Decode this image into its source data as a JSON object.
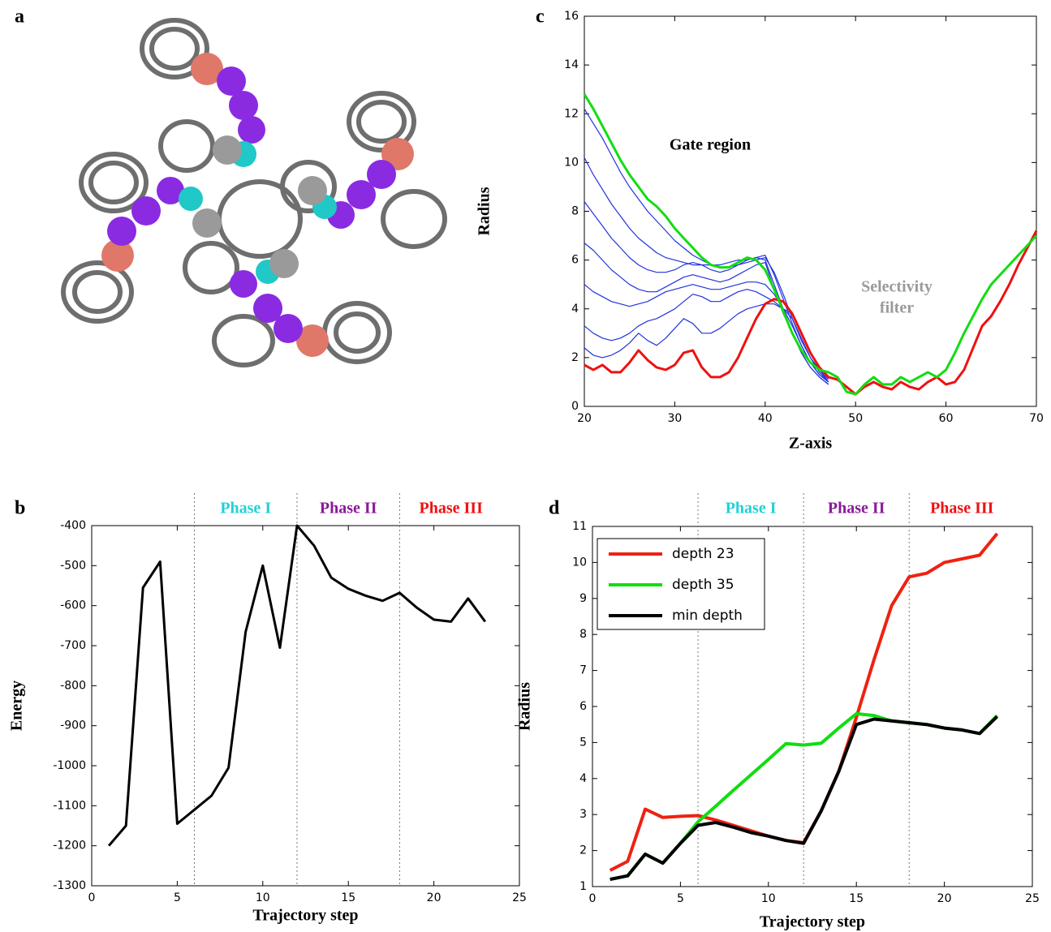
{
  "image_panel": {
    "panel": "a"
  },
  "chart_data": [
    {
      "type": "line",
      "panel": "c",
      "x_label": "Z-axis",
      "y_label": "Radius",
      "xlim": [
        20,
        70
      ],
      "xticks": [
        20,
        30,
        40,
        50,
        60,
        70
      ],
      "ylim": [
        0,
        16
      ],
      "yticks": [
        0,
        2,
        4,
        6,
        8,
        10,
        12,
        14,
        16
      ],
      "annotations": [
        {
          "lines": [
            "Gate region"
          ],
          "color": "#000000"
        },
        {
          "lines": [
            "Selectivity",
            "filter"
          ],
          "color": "#9a9a9a"
        }
      ],
      "x": [
        20,
        21,
        22,
        23,
        24,
        25,
        26,
        27,
        28,
        29,
        30,
        31,
        32,
        33,
        34,
        35,
        36,
        37,
        38,
        39,
        40,
        41,
        42,
        43,
        44,
        45,
        46,
        47,
        48,
        49,
        50,
        51,
        52,
        53,
        54,
        55,
        56,
        57,
        58,
        59,
        60,
        61,
        62,
        63,
        64,
        65,
        66,
        67,
        68,
        69,
        70
      ],
      "series": [
        {
          "color": "#2233dd",
          "values": [
            12.2,
            11.6,
            11.0,
            10.3,
            9.6,
            9.0,
            8.5,
            8.0,
            7.6,
            7.2,
            6.8,
            6.5,
            6.2,
            6.0,
            5.8,
            5.7,
            5.7,
            5.8,
            5.9,
            6.0,
            6.1,
            5.5,
            4.6,
            3.6,
            2.7,
            2.0,
            1.5,
            1.1,
            null,
            null,
            null,
            null,
            null,
            null,
            null,
            null,
            null,
            null,
            null,
            null,
            null,
            null,
            null,
            null,
            null,
            null,
            null,
            null,
            null,
            null,
            null
          ]
        },
        {
          "color": "#2233dd",
          "values": [
            10.2,
            9.5,
            8.9,
            8.3,
            7.8,
            7.3,
            6.9,
            6.6,
            6.3,
            6.1,
            6.0,
            5.9,
            5.8,
            5.8,
            5.8,
            5.8,
            5.9,
            6.0,
            6.0,
            6.1,
            6.2,
            5.4,
            4.4,
            3.4,
            2.5,
            1.8,
            1.3,
            1.0,
            null,
            null,
            null,
            null,
            null,
            null,
            null,
            null,
            null,
            null,
            null,
            null,
            null,
            null,
            null,
            null,
            null,
            null,
            null,
            null,
            null,
            null,
            null
          ]
        },
        {
          "color": "#2233dd",
          "values": [
            8.4,
            7.9,
            7.4,
            6.9,
            6.5,
            6.1,
            5.8,
            5.6,
            5.5,
            5.5,
            5.6,
            5.8,
            5.9,
            5.8,
            5.6,
            5.5,
            5.6,
            5.8,
            6.0,
            6.1,
            6.0,
            5.0,
            4.0,
            3.0,
            2.2,
            1.6,
            1.2,
            0.9,
            null,
            null,
            null,
            null,
            null,
            null,
            null,
            null,
            null,
            null,
            null,
            null,
            null,
            null,
            null,
            null,
            null,
            null,
            null,
            null,
            null,
            null,
            null
          ]
        },
        {
          "color": "#2233dd",
          "values": [
            6.7,
            6.4,
            6.0,
            5.6,
            5.3,
            5.0,
            4.8,
            4.7,
            4.7,
            4.9,
            5.1,
            5.3,
            5.4,
            5.3,
            5.2,
            5.1,
            5.2,
            5.4,
            5.6,
            5.8,
            5.9,
            4.8,
            3.8,
            3.0,
            2.2,
            1.6,
            1.2,
            0.9,
            null,
            null,
            null,
            null,
            null,
            null,
            null,
            null,
            null,
            null,
            null,
            null,
            null,
            null,
            null,
            null,
            null,
            null,
            null,
            null,
            null,
            null,
            null
          ]
        },
        {
          "color": "#2233dd",
          "values": [
            5.0,
            4.7,
            4.5,
            4.3,
            4.2,
            4.1,
            4.2,
            4.3,
            4.5,
            4.7,
            4.8,
            4.9,
            5.0,
            4.9,
            4.8,
            4.8,
            4.9,
            5.0,
            5.1,
            5.1,
            5.0,
            4.6,
            4.0,
            3.3,
            2.5,
            1.8,
            1.3,
            1.0,
            null,
            null,
            null,
            null,
            null,
            null,
            null,
            null,
            null,
            null,
            null,
            null,
            null,
            null,
            null,
            null,
            null,
            null,
            null,
            null,
            null,
            null,
            null
          ]
        },
        {
          "color": "#2233dd",
          "values": [
            3.3,
            3.0,
            2.8,
            2.7,
            2.8,
            3.0,
            3.3,
            3.5,
            3.6,
            3.8,
            4.0,
            4.3,
            4.6,
            4.5,
            4.3,
            4.3,
            4.5,
            4.7,
            4.8,
            4.7,
            4.5,
            4.3,
            4.0,
            3.6,
            2.8,
            2.0,
            1.4,
            1.0,
            null,
            null,
            null,
            null,
            null,
            null,
            null,
            null,
            null,
            null,
            null,
            null,
            null,
            null,
            null,
            null,
            null,
            null,
            null,
            null,
            null,
            null,
            null
          ]
        },
        {
          "color": "#2233dd",
          "values": [
            2.4,
            2.1,
            2.0,
            2.1,
            2.3,
            2.6,
            3.0,
            2.7,
            2.5,
            2.8,
            3.2,
            3.6,
            3.4,
            3.0,
            3.0,
            3.2,
            3.5,
            3.8,
            4.0,
            4.1,
            4.2,
            4.2,
            4.0,
            3.8,
            3.0,
            2.2,
            1.5,
            1.0,
            null,
            null,
            null,
            null,
            null,
            null,
            null,
            null,
            null,
            null,
            null,
            null,
            null,
            null,
            null,
            null,
            null,
            null,
            null,
            null,
            null,
            null,
            null
          ]
        },
        {
          "color": "#ee1111",
          "values": [
            1.7,
            1.5,
            1.7,
            1.4,
            1.4,
            1.8,
            2.3,
            1.9,
            1.6,
            1.5,
            1.7,
            2.2,
            2.3,
            1.6,
            1.2,
            1.2,
            1.4,
            2.0,
            2.8,
            3.6,
            4.2,
            4.4,
            4.3,
            3.8,
            3.0,
            2.2,
            1.6,
            1.2,
            1.1,
            0.8,
            0.5,
            0.8,
            1.0,
            0.8,
            0.7,
            1.0,
            0.8,
            0.7,
            1.0,
            1.2,
            0.9,
            1.0,
            1.5,
            2.4,
            3.3,
            3.7,
            4.3,
            5.0,
            5.8,
            6.5,
            7.2
          ]
        },
        {
          "color": "#11dd11",
          "values": [
            12.8,
            12.2,
            11.5,
            10.8,
            10.1,
            9.5,
            9.0,
            8.5,
            8.2,
            7.8,
            7.3,
            6.9,
            6.5,
            6.1,
            5.8,
            5.7,
            5.7,
            5.9,
            6.1,
            6.0,
            5.6,
            4.8,
            3.9,
            3.0,
            2.3,
            1.8,
            1.5,
            1.4,
            1.2,
            0.6,
            0.5,
            0.9,
            1.2,
            0.9,
            0.9,
            1.2,
            1.0,
            1.2,
            1.4,
            1.2,
            1.5,
            2.2,
            3.0,
            3.7,
            4.4,
            5.0,
            5.4,
            5.8,
            6.2,
            6.6,
            7.0
          ]
        }
      ]
    },
    {
      "type": "line",
      "panel": "b",
      "x_label": "Trajectory step",
      "y_label": "Energy",
      "xlim": [
        0,
        25
      ],
      "xticks": [
        0,
        5,
        10,
        15,
        20,
        25
      ],
      "ylim": [
        -1300,
        -400
      ],
      "yticks": [
        -1300,
        -1200,
        -1100,
        -1000,
        -900,
        -800,
        -700,
        -600,
        -500,
        -400
      ],
      "phases": [
        {
          "label": "Phase I",
          "start": 6,
          "color": "#22d0d8"
        },
        {
          "label": "Phase II",
          "start": 12,
          "color": "#8a1a9a"
        },
        {
          "label": "Phase III",
          "start": 18,
          "color": "#ee1111"
        }
      ],
      "x": [
        1,
        2,
        3,
        4,
        5,
        6,
        7,
        8,
        9,
        10,
        11,
        12,
        13,
        14,
        15,
        16,
        17,
        18,
        19,
        20,
        21,
        22,
        23
      ],
      "series": [
        {
          "color": "#000000",
          "values": [
            -1200,
            -1150,
            -555,
            -490,
            -1145,
            -1110,
            -1075,
            -1005,
            -665,
            -500,
            -705,
            -400,
            -450,
            -530,
            -558,
            -575,
            -588,
            -568,
            -605,
            -635,
            -640,
            -582,
            -640
          ]
        }
      ]
    },
    {
      "type": "line",
      "panel": "d",
      "x_label": "Trajectory step",
      "y_label": "Radius",
      "xlim": [
        0,
        25
      ],
      "xticks": [
        0,
        5,
        10,
        15,
        20,
        25
      ],
      "ylim": [
        1,
        11
      ],
      "yticks": [
        1,
        2,
        3,
        4,
        5,
        6,
        7,
        8,
        9,
        10,
        11
      ],
      "legend": "upper left",
      "phases": [
        {
          "label": "Phase I",
          "start": 6,
          "color": "#22d0d8"
        },
        {
          "label": "Phase II",
          "start": 12,
          "color": "#8a1a9a"
        },
        {
          "label": "Phase III",
          "start": 18,
          "color": "#ee1111"
        }
      ],
      "x": [
        1,
        2,
        3,
        4,
        5,
        6,
        7,
        8,
        9,
        10,
        11,
        12,
        13,
        14,
        15,
        16,
        17,
        18,
        19,
        20,
        21,
        22,
        23
      ],
      "series": [
        {
          "name": "depth 23",
          "color": "#ee2211",
          "values": [
            1.45,
            1.7,
            3.15,
            2.92,
            2.95,
            2.97,
            2.85,
            2.7,
            2.55,
            2.4,
            2.28,
            2.22,
            3.1,
            4.2,
            5.7,
            7.3,
            8.8,
            9.6,
            9.7,
            10.0,
            10.1,
            10.2,
            10.8
          ]
        },
        {
          "name": "depth 35",
          "color": "#11dd11",
          "values": [
            1.2,
            1.3,
            1.9,
            1.65,
            2.2,
            2.8,
            3.23,
            3.67,
            4.1,
            4.53,
            4.97,
            4.93,
            4.98,
            5.4,
            5.8,
            5.75,
            5.6,
            5.55,
            5.5,
            5.4,
            5.35,
            5.25,
            5.75
          ]
        },
        {
          "name": "min depth",
          "color": "#000000",
          "values": [
            1.2,
            1.3,
            1.9,
            1.65,
            2.2,
            2.7,
            2.78,
            2.65,
            2.5,
            2.4,
            2.28,
            2.2,
            3.1,
            4.2,
            5.5,
            5.65,
            5.6,
            5.55,
            5.5,
            5.4,
            5.35,
            5.25,
            5.72
          ]
        }
      ]
    }
  ]
}
